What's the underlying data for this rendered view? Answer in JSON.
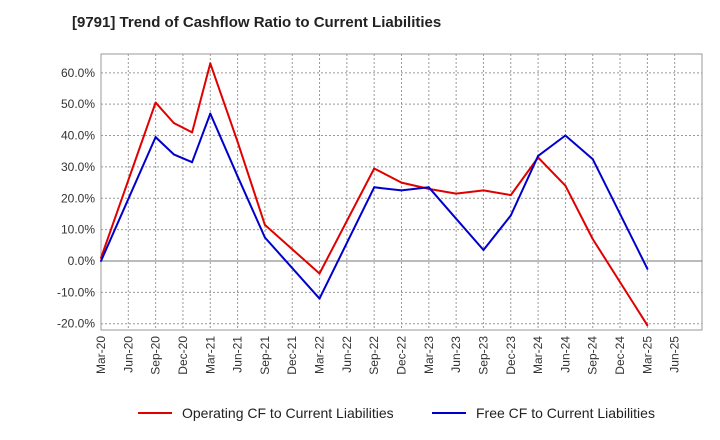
{
  "title": "[9791]  Trend of Cashflow Ratio to Current Liabilities",
  "colors": {
    "operating": "#e00000",
    "free": "#0000cc",
    "grid": "#999999",
    "zero": "#777777"
  },
  "chart_data": {
    "type": "line",
    "title": "[9791]  Trend of Cashflow Ratio to Current Liabilities",
    "xlabel": "",
    "ylabel": "",
    "x_tick_labels": [
      "Mar-20",
      "Jun-20",
      "Sep-20",
      "Dec-20",
      "Mar-21",
      "Jun-21",
      "Sep-21",
      "Dec-21",
      "Mar-22",
      "Jun-22",
      "Sep-22",
      "Dec-22",
      "Mar-23",
      "Jun-23",
      "Sep-23",
      "Dec-23",
      "Mar-24",
      "Jun-24",
      "Sep-24",
      "Dec-24",
      "Mar-25",
      "Jun-25"
    ],
    "y_tick_labels": [
      "60.0%",
      "50.0%",
      "40.0%",
      "30.0%",
      "20.0%",
      "10.0%",
      "0.0%",
      "-10.0%",
      "-20.0%"
    ],
    "y_ticks": [
      60,
      50,
      40,
      30,
      20,
      10,
      0,
      -10,
      -20
    ],
    "ylim": [
      -22,
      66
    ],
    "grid": true,
    "legend_position": "bottom",
    "series": [
      {
        "name": "Operating CF to Current Liabilities",
        "color": "#e00000",
        "x": [
          "Mar-20",
          "Sep-20",
          "Nov-20",
          "Jan-21",
          "Mar-21",
          "Jun-21",
          "Sep-21",
          "Mar-22",
          "Sep-22",
          "Dec-22",
          "Mar-23",
          "Jun-23",
          "Sep-23",
          "Dec-23",
          "Mar-24",
          "Jun-24",
          "Sep-24",
          "Mar-25"
        ],
        "values": [
          1.0,
          50.5,
          44.0,
          41.0,
          63.0,
          38.0,
          11.5,
          -4.0,
          29.5,
          25.0,
          23.0,
          21.5,
          22.5,
          21.0,
          33.0,
          24.0,
          7.0,
          -20.5
        ]
      },
      {
        "name": "Free CF to Current Liabilities",
        "color": "#0000cc",
        "x": [
          "Mar-20",
          "Sep-20",
          "Nov-20",
          "Jan-21",
          "Mar-21",
          "Jun-21",
          "Sep-21",
          "Mar-22",
          "Sep-22",
          "Dec-22",
          "Mar-23",
          "Jun-23",
          "Sep-23",
          "Dec-23",
          "Mar-24",
          "Jun-24",
          "Sep-24",
          "Mar-25"
        ],
        "values": [
          0.0,
          39.5,
          34.0,
          31.5,
          47.0,
          27.0,
          7.5,
          -12.0,
          23.5,
          22.5,
          23.5,
          13.5,
          3.5,
          14.5,
          33.5,
          40.0,
          32.5,
          -2.5
        ]
      }
    ]
  }
}
